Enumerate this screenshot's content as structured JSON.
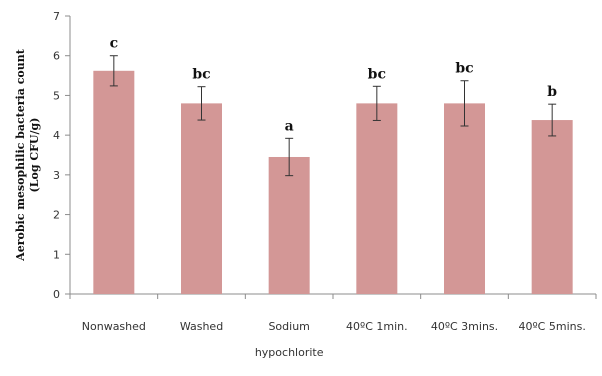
{
  "chart_data": {
    "type": "bar",
    "ylabel_line1": "Aerobic mesophilic bacteria count",
    "ylabel_line2": "(Log CFU/g)",
    "ylim": [
      0,
      7
    ],
    "yticks": [
      "0",
      "1",
      "2",
      "3",
      "4",
      "5",
      "6",
      "7"
    ],
    "categories": [
      [
        "Nonwashed"
      ],
      [
        "Washed"
      ],
      [
        "Sodium",
        "hypochlorite"
      ],
      [
        "40ºC 1min."
      ],
      [
        "40ºC 3mins."
      ],
      [
        "40ºC 5mins."
      ]
    ],
    "values": [
      5.62,
      4.8,
      3.45,
      4.8,
      4.8,
      4.38
    ],
    "error_plus": [
      0.38,
      0.42,
      0.47,
      0.43,
      0.57,
      0.4
    ],
    "error_minus": [
      0.38,
      0.42,
      0.47,
      0.43,
      0.57,
      0.4
    ],
    "significance": [
      "c",
      "bc",
      "a",
      "bc",
      "bc",
      "b"
    ],
    "bar_color": "#d39796",
    "axis_color": "#8c8c8c",
    "grid": false,
    "legend": "none"
  }
}
